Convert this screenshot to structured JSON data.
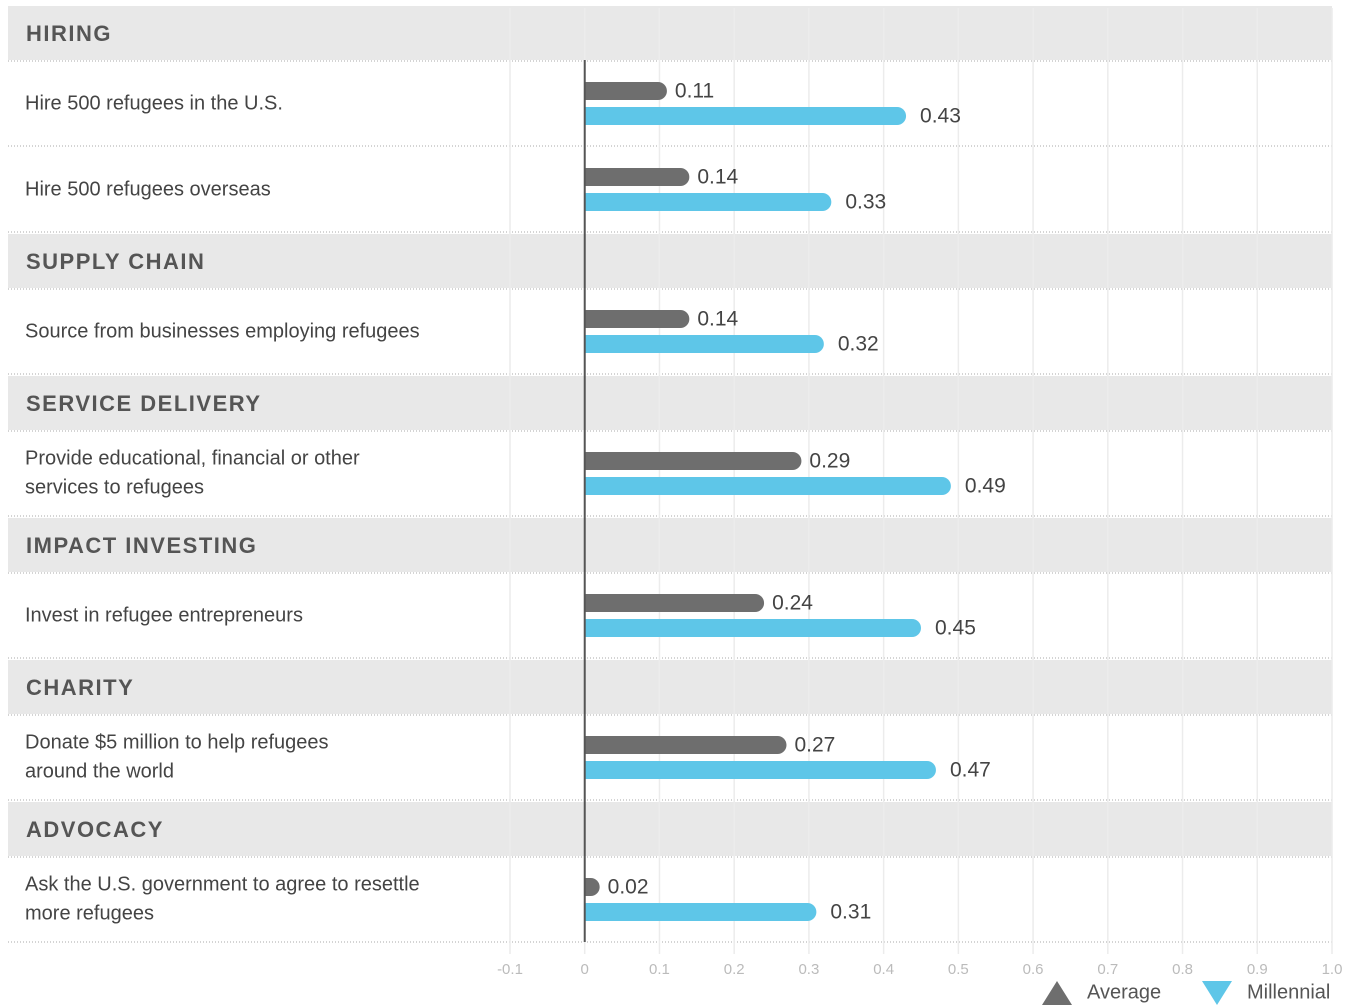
{
  "chart_data": {
    "type": "bar",
    "orientation": "horizontal",
    "sections": [
      {
        "name": "HIRING",
        "categories": [
          "Hire 500 refugees in the U.S.",
          "Hire 500 refugees overseas"
        ]
      },
      {
        "name": "SUPPLY CHAIN",
        "categories": [
          "Source from businesses employing refugees"
        ]
      },
      {
        "name": "SERVICE DELIVERY",
        "categories": [
          [
            "Provide educational, financial or other",
            "services to refugees"
          ]
        ]
      },
      {
        "name": "IMPACT INVESTING",
        "categories": [
          "Invest in refugee entrepreneurs"
        ]
      },
      {
        "name": "CHARITY",
        "categories": [
          [
            "Donate $5 million to help refugees",
            "around the world"
          ]
        ]
      },
      {
        "name": "ADVOCACY",
        "categories": [
          [
            "Ask the U.S. government to agree to resettle",
            "more refugees"
          ]
        ]
      }
    ],
    "series": [
      {
        "name": "Average",
        "color": "#6e6e6e",
        "marker": "triangle-up",
        "values": [
          0.11,
          0.14,
          0.14,
          0.29,
          0.24,
          0.27,
          0.02
        ]
      },
      {
        "name": "Millennial",
        "color": "#5ec6e8",
        "marker": "triangle-down",
        "values": [
          0.43,
          0.33,
          0.32,
          0.49,
          0.45,
          0.47,
          0.31
        ]
      }
    ],
    "xlim": [
      -0.1,
      1.0
    ],
    "xticks": [
      -0.1,
      0,
      0.1,
      0.2,
      0.3,
      0.4,
      0.5,
      0.6,
      0.7,
      0.8,
      0.9,
      {
        "value": 1.0,
        "label": "1.0"
      }
    ],
    "grid": true,
    "legend": "bottom-right"
  }
}
